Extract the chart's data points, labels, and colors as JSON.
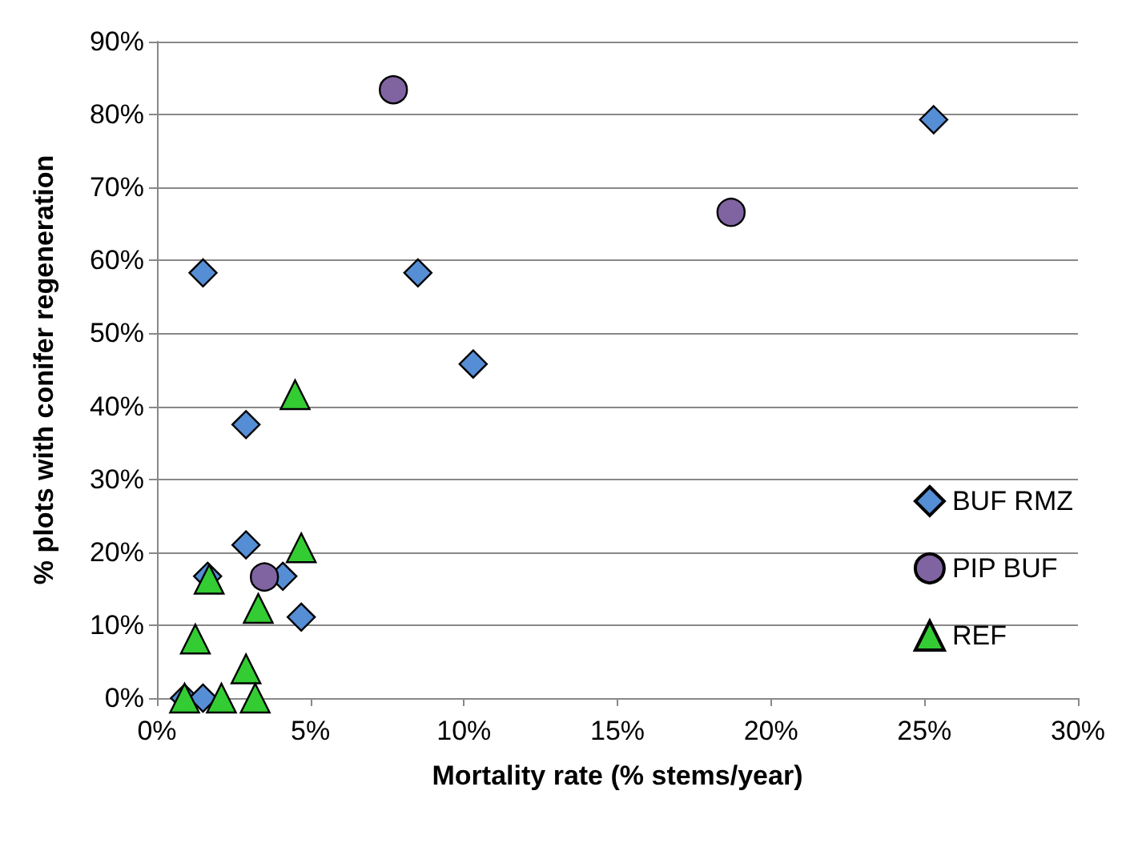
{
  "chart_data": {
    "type": "scatter",
    "xlabel": "Mortality rate (% stems/year)",
    "ylabel": "% plots with conifer regeneration",
    "xlim": [
      0,
      30
    ],
    "xticks": [
      {
        "value": 0,
        "label": "0%"
      },
      {
        "value": 5,
        "label": "5%"
      },
      {
        "value": 10,
        "label": "10%"
      },
      {
        "value": 15,
        "label": "15%"
      },
      {
        "value": 20,
        "label": "20%"
      },
      {
        "value": 25,
        "label": "25%"
      },
      {
        "value": 30,
        "label": "30%"
      }
    ],
    "ylim": [
      0,
      90
    ],
    "yticks": [
      {
        "value": 0,
        "label": "0%"
      },
      {
        "value": 10,
        "label": "10%"
      },
      {
        "value": 20,
        "label": "20%"
      },
      {
        "value": 30,
        "label": "30%"
      },
      {
        "value": 40,
        "label": "40%"
      },
      {
        "value": 50,
        "label": "50%"
      },
      {
        "value": 60,
        "label": "60%"
      },
      {
        "value": 70,
        "label": "70%"
      },
      {
        "value": 80,
        "label": "80%"
      },
      {
        "value": 90,
        "label": "90%"
      }
    ],
    "grid": "y",
    "legend": "right",
    "series": [
      {
        "name": "BUF RMZ",
        "color": "#558ed5",
        "marker": "diamond",
        "x": [
          1.5,
          8.5,
          10.3,
          25.3,
          2.9,
          2.9,
          1.65,
          4.1,
          4.7,
          0.9,
          1.5
        ],
        "values": [
          58.3,
          58.3,
          45.8,
          79.3,
          37.5,
          21,
          16.7,
          16.7,
          11.1,
          0,
          0
        ]
      },
      {
        "name": "PIP BUF",
        "color": "#8064a2",
        "marker": "circle",
        "x": [
          7.7,
          18.7,
          3.5
        ],
        "values": [
          83.4,
          66.6,
          16.6
        ]
      },
      {
        "name": "REF",
        "color": "#33cc33",
        "marker": "triangle",
        "x": [
          4.5,
          4.7,
          1.7,
          3.3,
          1.25,
          2.9,
          0.9,
          2.1,
          3.2
        ],
        "values": [
          41.6,
          20.6,
          16.3,
          12.3,
          8.1,
          4,
          0,
          0,
          0
        ]
      }
    ]
  }
}
